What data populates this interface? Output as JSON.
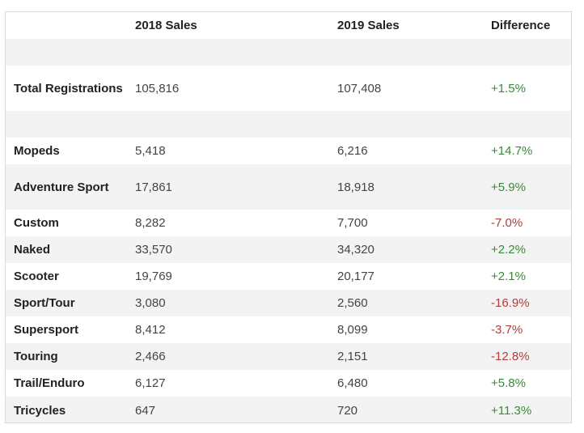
{
  "table": {
    "headers": [
      "",
      "2018 Sales",
      "2019 Sales",
      "Difference"
    ],
    "total": {
      "label": "Total Registrations",
      "sales_2018": "105,816",
      "sales_2019": "107,408",
      "difference": "+1.5%"
    },
    "rows": [
      {
        "label": "Mopeds",
        "sales_2018": "5,418",
        "sales_2019": "6,216",
        "difference": "+14.7%"
      },
      {
        "label": "Adventure Sport",
        "sales_2018": "17,861",
        "sales_2019": "18,918",
        "difference": "+5.9%"
      },
      {
        "label": "Custom",
        "sales_2018": "8,282",
        "sales_2019": "7,700",
        "difference": "-7.0%"
      },
      {
        "label": "Naked",
        "sales_2018": "33,570",
        "sales_2019": "34,320",
        "difference": "+2.2%"
      },
      {
        "label": "Scooter",
        "sales_2018": "19,769",
        "sales_2019": "20,177",
        "difference": "+2.1%"
      },
      {
        "label": "Sport/Tour",
        "sales_2018": "3,080",
        "sales_2019": "2,560",
        "difference": "-16.9%"
      },
      {
        "label": "Supersport",
        "sales_2018": "8,412",
        "sales_2019": "8,099",
        "difference": "-3.7%"
      },
      {
        "label": "Touring",
        "sales_2018": "2,466",
        "sales_2019": "2,151",
        "difference": "-12.8%"
      },
      {
        "label": "Trail/Enduro",
        "sales_2018": "6,127",
        "sales_2019": "6,480",
        "difference": "+5.8%"
      },
      {
        "label": "Tricycles",
        "sales_2018": "647",
        "sales_2019": "720",
        "difference": "+11.3%"
      }
    ]
  },
  "colors": {
    "positive": "#3a8a3a",
    "negative": "#b23b3b",
    "shaded_row": "#f3f3f3"
  }
}
